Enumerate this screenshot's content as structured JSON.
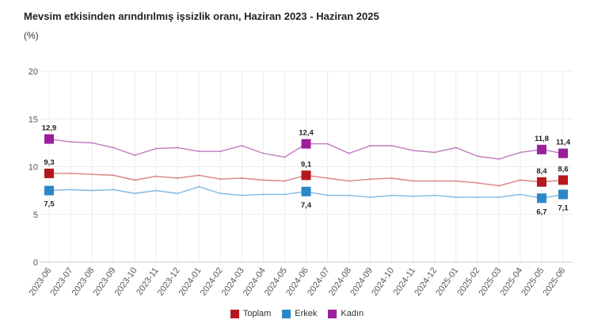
{
  "chart_data": {
    "type": "line",
    "title": "Mevsim etkisinden arındırılmış işsizlik oranı, Haziran 2023 - Haziran 2025",
    "ylabel": "(%)",
    "xlabel": "",
    "ylim": [
      0,
      20
    ],
    "yticks": [
      "0",
      "5",
      "10",
      "15",
      "20"
    ],
    "grid": true,
    "legend_position": "bottom",
    "categories": [
      "2023-06",
      "2023-07",
      "2023-08",
      "2023-09",
      "2023-10",
      "2023-11",
      "2023-12",
      "2024-01",
      "2024-02",
      "2024-03",
      "2024-04",
      "2024-05",
      "2024-06",
      "2024-07",
      "2024-08",
      "2024-09",
      "2024-10",
      "2024-11",
      "2024-12",
      "2025-01",
      "2025-02",
      "2025-03",
      "2025-04",
      "2025-05",
      "2025-06"
    ],
    "labeled_indices": [
      0,
      12,
      23,
      24
    ],
    "series": [
      {
        "name": "Toplam",
        "color": "#b5171f",
        "line_color": "#d98080",
        "values": [
          9.3,
          9.3,
          9.2,
          9.1,
          8.6,
          9.0,
          8.8,
          9.1,
          8.7,
          8.8,
          8.6,
          8.5,
          9.1,
          8.8,
          8.5,
          8.7,
          8.8,
          8.5,
          8.5,
          8.5,
          8.3,
          8.0,
          8.6,
          8.4,
          8.6
        ],
        "labels": [
          "9,3",
          "9,1",
          "8,4",
          "8,6"
        ]
      },
      {
        "name": "Erkek",
        "color": "#2a88c8",
        "line_color": "#7fb8df",
        "values": [
          7.5,
          7.6,
          7.5,
          7.6,
          7.2,
          7.5,
          7.2,
          7.9,
          7.2,
          7.0,
          7.1,
          7.1,
          7.4,
          7.0,
          7.0,
          6.8,
          7.0,
          6.9,
          7.0,
          6.8,
          6.8,
          6.8,
          7.1,
          6.7,
          7.1
        ],
        "labels": [
          "7,5",
          "7,4",
          "6,7",
          "7,1"
        ]
      },
      {
        "name": "Kadın",
        "color": "#9b1f9b",
        "line_color": "#c07ac0",
        "values": [
          12.9,
          12.6,
          12.5,
          12.0,
          11.2,
          11.9,
          12.0,
          11.6,
          11.6,
          12.2,
          11.4,
          11.0,
          12.4,
          12.4,
          11.4,
          12.2,
          12.2,
          11.7,
          11.5,
          12.0,
          11.1,
          10.8,
          11.5,
          11.8,
          11.4
        ],
        "labels": [
          "12,9",
          "12,4",
          "11,8",
          "11,4"
        ]
      }
    ]
  }
}
